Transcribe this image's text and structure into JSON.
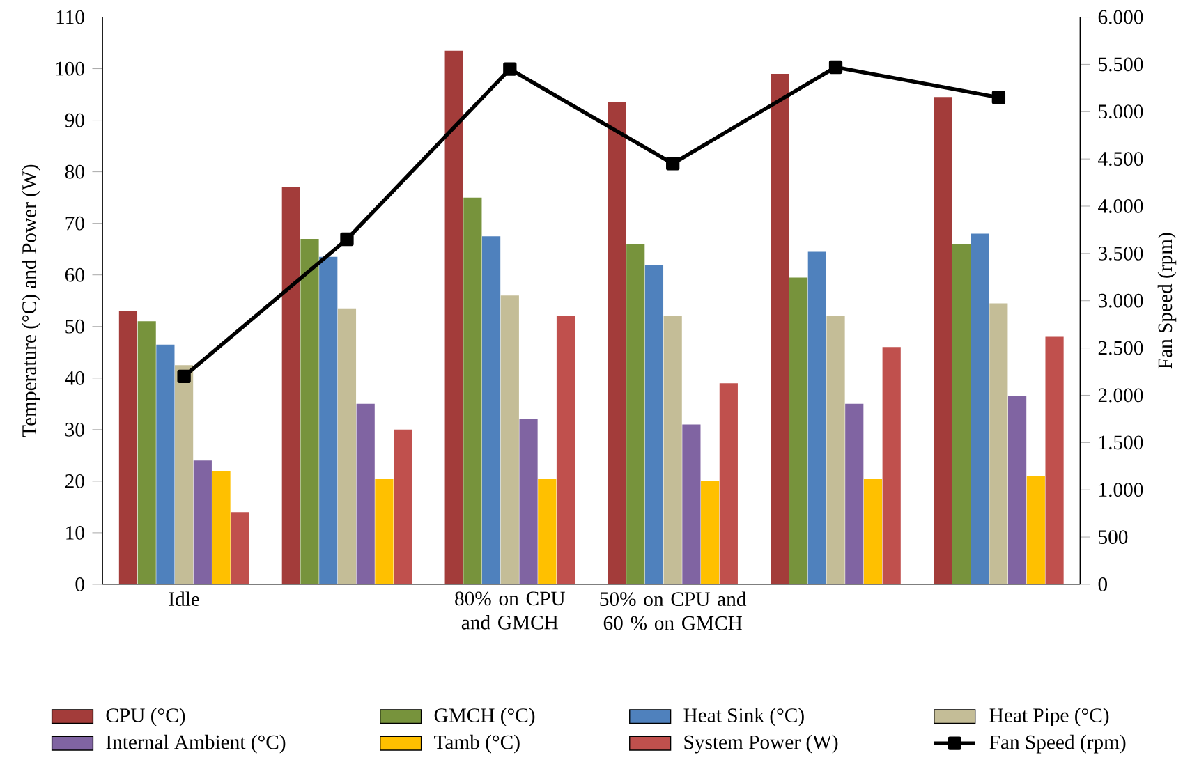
{
  "chart_data": {
    "type": "bar",
    "categories": [
      "Idle",
      null,
      "80% on CPU and GMCH",
      "50% on CPU and 60 % on GMCH",
      null,
      null
    ],
    "ylabel": "Temperature (°C) and Power (W)",
    "y2label": "Fan Speed (rpm)",
    "ylim": [
      0,
      110
    ],
    "yticks": [
      0,
      10,
      20,
      30,
      40,
      50,
      60,
      70,
      80,
      90,
      100,
      110
    ],
    "y2lim": [
      0,
      6000
    ],
    "y2ticks": [
      0,
      500,
      {
        "value": 1000,
        "label": "1.000"
      },
      {
        "value": 1500,
        "label": "1.500"
      },
      {
        "value": 2000,
        "label": "2.000"
      },
      {
        "value": 2500,
        "label": "2.500"
      },
      {
        "value": 3000,
        "label": "3.000"
      },
      {
        "value": 3500,
        "label": "3.500"
      },
      {
        "value": 4000,
        "label": "4.000"
      },
      {
        "value": 4500,
        "label": "4.500"
      },
      {
        "value": 5000,
        "label": "5.000"
      },
      {
        "value": 5500,
        "label": "5.500"
      },
      {
        "value": 6000,
        "label": "6.000"
      }
    ],
    "grid": false,
    "legend": "bottom",
    "series": [
      {
        "name": "CPU (°C)",
        "color": "#a33c3a",
        "values": [
          53,
          77,
          103.5,
          93.5,
          99,
          94.5
        ]
      },
      {
        "name": "GMCH (°C)",
        "color": "#77933c",
        "values": [
          51,
          67,
          75,
          66,
          59.5,
          66
        ]
      },
      {
        "name": "Heat Sink (°C)",
        "color": "#4f81bd",
        "values": [
          46.5,
          63.5,
          67.5,
          62,
          64.5,
          68
        ]
      },
      {
        "name": "Heat Pipe (°C)",
        "color": "#c4bd97",
        "values": [
          42.5,
          53.5,
          56,
          52,
          52,
          54.5
        ]
      },
      {
        "name": "Internal Ambient (°C)",
        "color": "#8064a2",
        "values": [
          24,
          35,
          32,
          31,
          35,
          36.5
        ]
      },
      {
        "name": "Tamb (°C)",
        "color": "#ffc000",
        "values": [
          22,
          20.5,
          20.5,
          20,
          20.5,
          21
        ]
      },
      {
        "name": "System Power (W)",
        "color": "#c0504d",
        "values": [
          14,
          30,
          52,
          39,
          46,
          48
        ]
      },
      {
        "name": "Fan Speed  (rpm)",
        "type": "line",
        "axis": "y2",
        "color": "#000000",
        "marker": "square",
        "line_style": "solid",
        "values": [
          2200,
          3650,
          5450,
          4450,
          5470,
          5150
        ]
      }
    ]
  }
}
